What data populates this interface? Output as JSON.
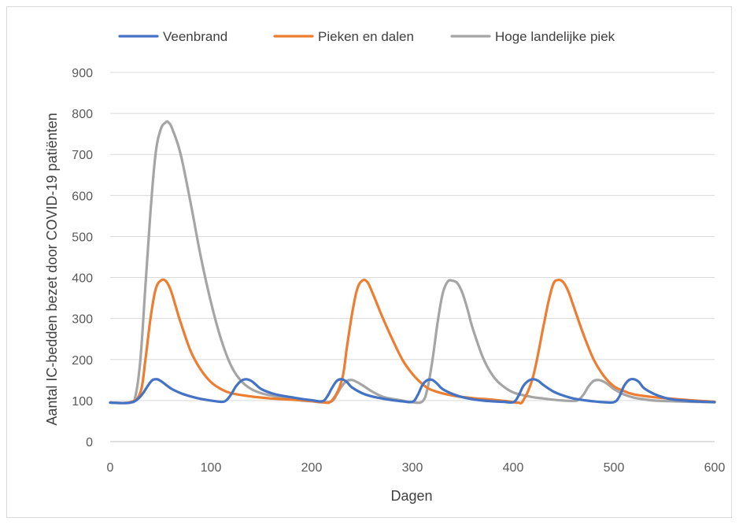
{
  "chart_data": {
    "type": "line",
    "xlabel": "Dagen",
    "ylabel": "Aantal IC-bedden bezet door COVID-19 patiënten",
    "xlim": [
      0,
      600
    ],
    "ylim": [
      0,
      900
    ],
    "xticks": [
      "0",
      "100",
      "200",
      "300",
      "400",
      "500",
      "600"
    ],
    "yticks": [
      "0",
      "100",
      "200",
      "300",
      "400",
      "500",
      "600",
      "700",
      "800",
      "900"
    ],
    "grid": "horizontal",
    "legend_position": "top",
    "series": [
      {
        "name": "Veenbrand",
        "color": "#4472c4",
        "x": [
          0,
          20,
          30,
          40,
          45,
          50,
          60,
          70,
          80,
          90,
          100,
          110,
          115,
          120,
          125,
          130,
          135,
          140,
          145,
          150,
          160,
          170,
          180,
          190,
          200,
          210,
          215,
          220,
          225,
          230,
          235,
          240,
          250,
          260,
          270,
          280,
          290,
          300,
          305,
          310,
          315,
          320,
          325,
          330,
          340,
          350,
          360,
          370,
          380,
          390,
          400,
          405,
          410,
          415,
          420,
          425,
          430,
          440,
          450,
          460,
          470,
          480,
          490,
          500,
          505,
          510,
          515,
          520,
          525,
          530,
          540,
          550,
          560,
          570,
          580,
          590,
          600
        ],
        "values": [
          95,
          95,
          110,
          145,
          152,
          148,
          130,
          118,
          110,
          104,
          100,
          97,
          100,
          115,
          135,
          148,
          152,
          148,
          138,
          128,
          118,
          112,
          108,
          104,
          101,
          98,
          108,
          130,
          148,
          152,
          145,
          132,
          118,
          110,
          105,
          101,
          98,
          97,
          112,
          138,
          150,
          150,
          140,
          128,
          116,
          108,
          103,
          100,
          98,
          97,
          96,
          110,
          135,
          148,
          152,
          148,
          138,
          122,
          112,
          105,
          101,
          98,
          96,
          96,
          108,
          135,
          150,
          152,
          145,
          130,
          116,
          107,
          102,
          100,
          98,
          97,
          96
        ]
      },
      {
        "name": "Pieken en dalen",
        "color": "#ed7d31",
        "x": [
          0,
          20,
          30,
          35,
          40,
          45,
          50,
          55,
          60,
          65,
          70,
          80,
          90,
          100,
          110,
          120,
          140,
          160,
          180,
          200,
          210,
          220,
          230,
          235,
          240,
          245,
          250,
          255,
          260,
          270,
          280,
          290,
          300,
          310,
          320,
          340,
          360,
          380,
          395,
          400,
          405,
          410,
          420,
          430,
          435,
          440,
          445,
          450,
          455,
          460,
          470,
          480,
          490,
          500,
          510,
          520,
          540,
          560,
          580,
          600
        ],
        "values": [
          95,
          96,
          120,
          200,
          300,
          370,
          392,
          392,
          370,
          330,
          290,
          220,
          175,
          145,
          128,
          118,
          110,
          105,
          102,
          99,
          96,
          100,
          150,
          230,
          310,
          370,
          392,
          390,
          365,
          305,
          250,
          200,
          165,
          140,
          125,
          112,
          106,
          102,
          98,
          96,
          95,
          100,
          160,
          280,
          340,
          385,
          394,
          388,
          365,
          330,
          260,
          200,
          160,
          135,
          123,
          115,
          108,
          104,
          100,
          97
        ]
      },
      {
        "name": "Hoge landelijke piek",
        "color": "#a5a5a5",
        "x": [
          0,
          20,
          25,
          30,
          35,
          40,
          45,
          50,
          55,
          58,
          62,
          70,
          80,
          90,
          100,
          110,
          120,
          130,
          140,
          150,
          160,
          170,
          180,
          190,
          200,
          210,
          220,
          225,
          230,
          235,
          240,
          245,
          250,
          260,
          270,
          280,
          290,
          300,
          310,
          315,
          320,
          325,
          330,
          335,
          340,
          345,
          350,
          355,
          360,
          370,
          380,
          390,
          400,
          410,
          420,
          430,
          440,
          450,
          460,
          465,
          470,
          475,
          480,
          485,
          490,
          495,
          500,
          510,
          520,
          530,
          540,
          560,
          580,
          600
        ],
        "values": [
          95,
          95,
          110,
          200,
          380,
          560,
          700,
          760,
          778,
          778,
          760,
          700,
          580,
          450,
          340,
          250,
          185,
          148,
          128,
          118,
          112,
          108,
          104,
          100,
          98,
          96,
          98,
          115,
          135,
          148,
          150,
          145,
          138,
          122,
          110,
          104,
          100,
          96,
          98,
          130,
          200,
          290,
          360,
          390,
          392,
          385,
          360,
          320,
          275,
          205,
          160,
          135,
          120,
          113,
          108,
          105,
          102,
          100,
          99,
          102,
          115,
          135,
          148,
          150,
          146,
          138,
          128,
          115,
          107,
          103,
          100,
          98,
          97,
          96
        ]
      }
    ]
  }
}
